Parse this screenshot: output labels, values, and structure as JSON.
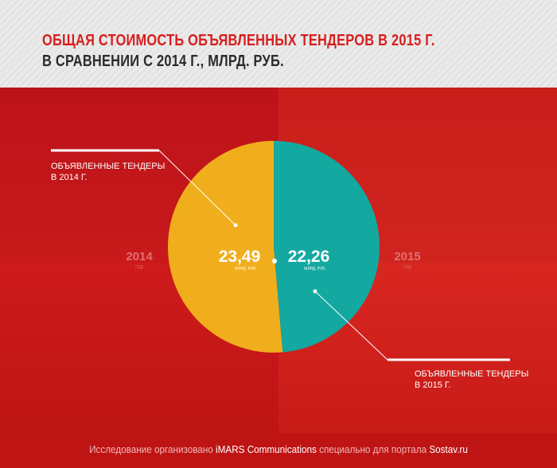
{
  "header": {
    "title_line1": "ОБЩАЯ СТОИМОСТЬ ОБЪЯВЛЕННЫХ ТЕНДЕРОВ В 2015 Г.",
    "title_line2": "В СРАВНЕНИИ С 2014 Г., МЛРД. РУБ."
  },
  "colors": {
    "accent_red": "#d81e1e",
    "slice_2014": "#f0ae1c",
    "slice_2015": "#13a8a0",
    "background_red": "#c91818"
  },
  "chart_data": {
    "type": "pie",
    "title": "ОБЩАЯ СТОИМОСТЬ ОБЪЯВЛЕННЫХ ТЕНДЕРОВ В 2015 Г. В СРАВНЕНИИ С 2014 Г., МЛРД. РУБ.",
    "categories": [
      "2014",
      "2015"
    ],
    "values": [
      23.49,
      22.26
    ],
    "value_labels": [
      "23,49",
      "22,26"
    ],
    "unit_label": "МЛРД. РУБ.",
    "year_sublabel": "ГОД",
    "annotations": [
      "ОБЪЯВЛЕННЫЕ ТЕНДЕРЫ В 2014 Г.",
      "ОБЪЯВЛЕННЫЕ ТЕНДЕРЫ В 2015 Г."
    ],
    "annotation_lines": [
      [
        "ОБЪЯВЛЕННЫЕ ТЕНДЕРЫ",
        "В 2014 Г."
      ],
      [
        "ОБЪЯВЛЕННЫЕ ТЕНДЕРЫ",
        "В 2015 Г."
      ]
    ]
  },
  "footer": {
    "prefix": "Исследование организовано",
    "org": "iMARS Communications",
    "middle": "специально для портала",
    "site": "Sostav.ru"
  }
}
